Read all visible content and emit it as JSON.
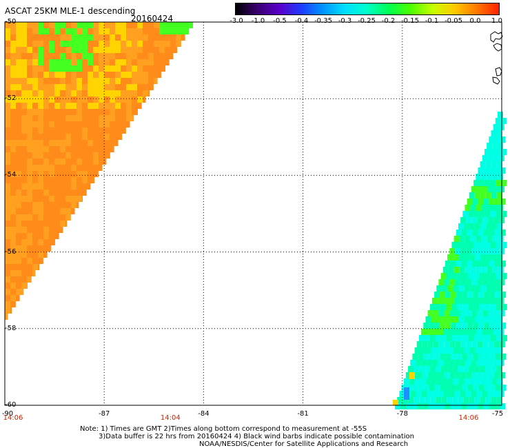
{
  "header": {
    "title": "ASCAT 25KM MLE-1 descending",
    "date": "20160424"
  },
  "colorbar": {
    "labels": [
      "-3.0",
      "-1.0",
      "-0.5",
      "-0.4",
      "-0.35",
      "-0.3",
      "-0.25",
      "-0.2",
      "-0.15",
      "-0.1",
      "-0.05",
      "0.0",
      "1.0"
    ],
    "colors": [
      "#000000",
      "#3a0070",
      "#5a00c8",
      "#1e3cff",
      "#0096ff",
      "#00e0ff",
      "#00ffc8",
      "#00ff50",
      "#50ff00",
      "#c8ff00",
      "#ffc800",
      "#ff7800",
      "#ff2000"
    ]
  },
  "map": {
    "lat_labels": [
      "-50",
      "-52",
      "-54",
      "-56",
      "-58",
      "-60"
    ],
    "lon_labels": [
      "-90",
      "-87",
      "-84",
      "-81",
      "-78",
      "-75"
    ],
    "times": [
      {
        "label": "14:06",
        "lon": -90
      },
      {
        "label": "14:04",
        "lon": -85
      },
      {
        "label": "14:06",
        "lon": -76
      }
    ],
    "colors": {
      "orange": "#ff8c1a",
      "orange_light": "#ffa020",
      "yellow": "#ffd400",
      "green": "#44ff22",
      "teal": "#00ffb0",
      "cyan": "#00ffe4",
      "blue": "#1e90ff"
    }
  },
  "notes": {
    "line1": "Note: 1) Times are GMT 2)Times along bottom correspond to measurement at -55S",
    "line2": "3)Data buffer is 22 hrs from 20160424 4) Black wind barbs indicate possible contamination",
    "line3": "NOAA/NESDIS/Center for Satellite Applications and Research"
  }
}
